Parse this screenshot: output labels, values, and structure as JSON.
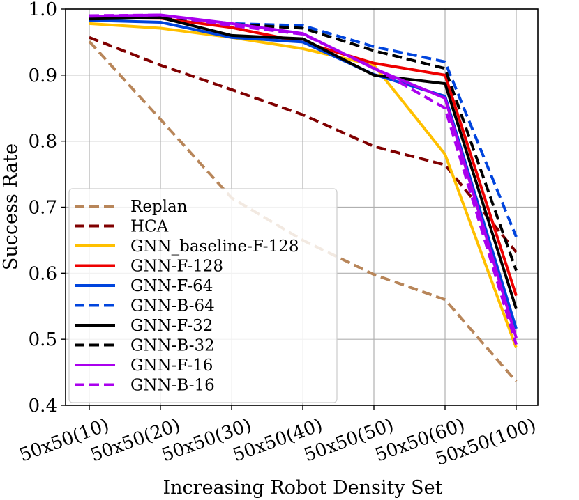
{
  "chart_data": {
    "type": "line",
    "title": "",
    "xlabel": "Increasing Robot Density Set",
    "ylabel": "Success Rate",
    "categories": [
      "50x50(10)",
      "50x50(20)",
      "50x50(30)",
      "50x50(40)",
      "50x50(50)",
      "50x50(60)",
      "50x50(100)"
    ],
    "ylim": [
      0.4,
      1.0
    ],
    "yticks": [
      0.4,
      0.5,
      0.6,
      0.7,
      0.8,
      0.9,
      1.0
    ],
    "ytick_labels": [
      "0.4",
      "0.5",
      "0.6",
      "0.7",
      "0.8",
      "0.9",
      "1.0"
    ],
    "grid": true,
    "legend_position": "lower-left",
    "series": [
      {
        "name": "Replan",
        "color": "#b8865a",
        "dash": "dashed",
        "values": [
          0.951,
          0.833,
          0.714,
          0.65,
          0.598,
          0.56,
          0.436
        ]
      },
      {
        "name": "HCA",
        "color": "#800000",
        "dash": "dashed",
        "values": [
          0.957,
          0.915,
          0.878,
          0.84,
          0.792,
          0.764,
          0.632
        ]
      },
      {
        "name": "GNN_baseline-F-128",
        "color": "#ffc000",
        "dash": "solid",
        "values": [
          0.978,
          0.971,
          0.957,
          0.94,
          0.915,
          0.78,
          0.487
        ]
      },
      {
        "name": "GNN-F-128",
        "color": "#ee0000",
        "dash": "solid",
        "values": [
          0.987,
          0.986,
          0.972,
          0.95,
          0.918,
          0.9,
          0.566
        ]
      },
      {
        "name": "GNN-F-64",
        "color": "#0044dd",
        "dash": "solid",
        "values": [
          0.983,
          0.98,
          0.957,
          0.95,
          0.901,
          0.868,
          0.516
        ]
      },
      {
        "name": "GNN-B-64",
        "color": "#0044dd",
        "dash": "dashed",
        "values": [
          0.989,
          0.99,
          0.978,
          0.975,
          0.943,
          0.92,
          0.655
        ]
      },
      {
        "name": "GNN-F-32",
        "color": "#000000",
        "dash": "solid",
        "values": [
          0.985,
          0.987,
          0.96,
          0.955,
          0.9,
          0.887,
          0.546
        ]
      },
      {
        "name": "GNN-B-32",
        "color": "#000000",
        "dash": "dashed",
        "values": [
          0.987,
          0.989,
          0.977,
          0.971,
          0.937,
          0.91,
          0.604
        ]
      },
      {
        "name": "GNN-F-16",
        "color": "#aa00ee",
        "dash": "solid",
        "values": [
          0.989,
          0.991,
          0.978,
          0.963,
          0.91,
          0.865,
          0.502
        ]
      },
      {
        "name": "GNN-B-16",
        "color": "#aa00ee",
        "dash": "dashed",
        "values": [
          0.99,
          0.991,
          0.975,
          0.962,
          0.911,
          0.85,
          0.492
        ]
      }
    ]
  }
}
